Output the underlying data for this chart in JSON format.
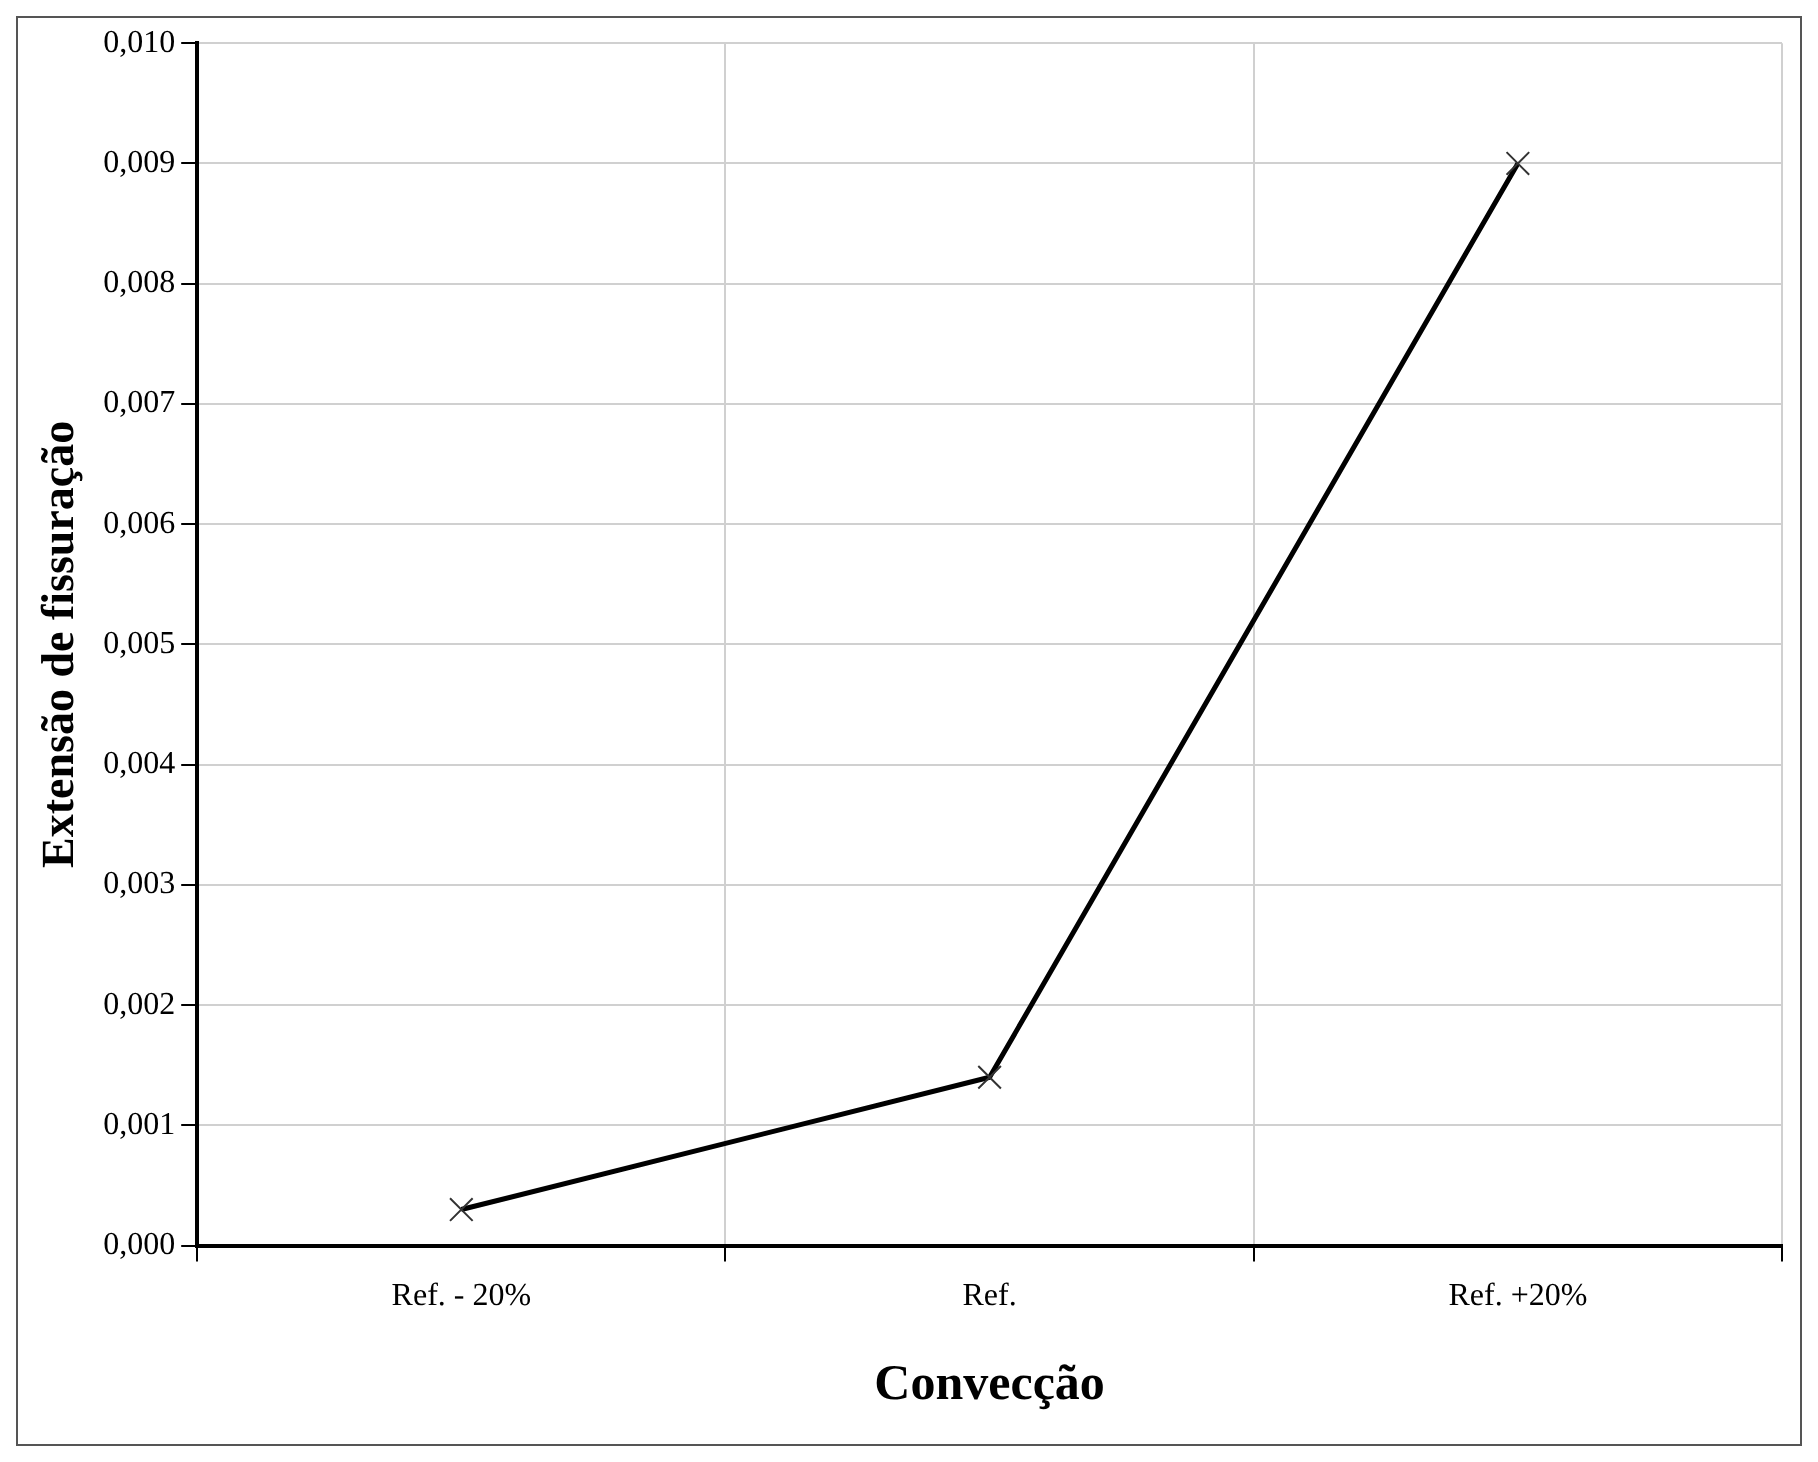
{
  "chart_data": {
    "type": "line",
    "xlabel": "Convecção",
    "ylabel": "Extensão de fissuração",
    "categories": [
      "Ref. - 20%",
      "Ref.",
      "Ref. +20%"
    ],
    "series": [
      {
        "color": "#000000",
        "values": [
          0.0003,
          0.0014,
          0.009
        ]
      }
    ],
    "ylim": [
      0,
      0.01
    ],
    "yticks": [
      {
        "value": 0,
        "label": "0,000"
      },
      {
        "value": 0.001,
        "label": "0,001"
      },
      {
        "value": 0.002,
        "label": "0,002"
      },
      {
        "value": 0.003,
        "label": "0,003"
      },
      {
        "value": 0.004,
        "label": "0,004"
      },
      {
        "value": 0.005,
        "label": "0,005"
      },
      {
        "value": 0.006,
        "label": "0,006"
      },
      {
        "value": 0.007,
        "label": "0,007"
      },
      {
        "value": 0.008,
        "label": "0,008"
      },
      {
        "value": 0.009,
        "label": "0,009"
      },
      {
        "value": 0.01,
        "label": "0,010"
      }
    ],
    "grid": true,
    "legend": false,
    "marker": "cross",
    "line_style": "solid"
  }
}
